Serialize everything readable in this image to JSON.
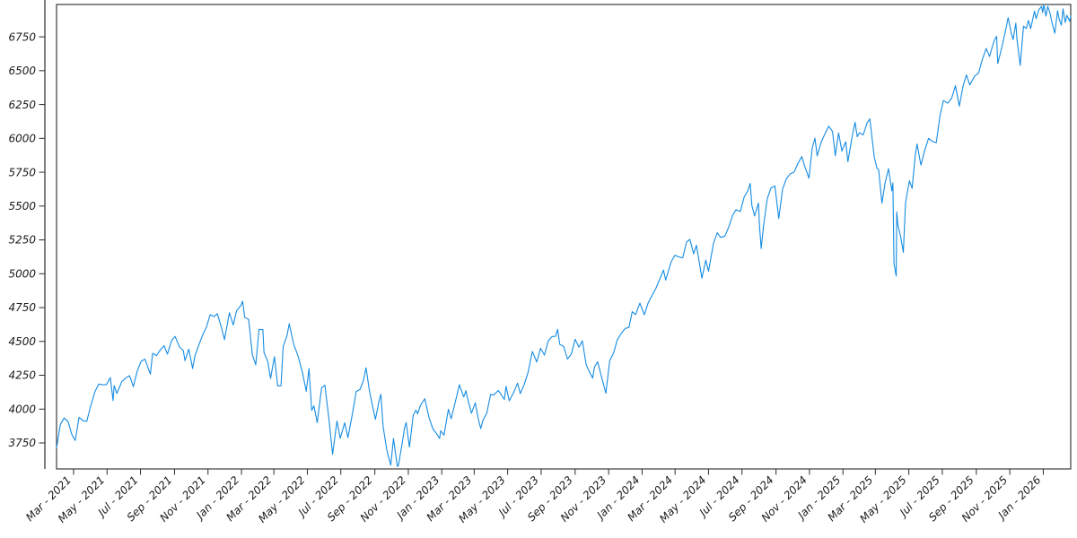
{
  "figure": {
    "background": "#ffffff",
    "border_color": "#2b2b2b",
    "tick_color": "#2b2b2b",
    "label_color": "#1a1a1a"
  },
  "chart_data": {
    "type": "line",
    "title": "",
    "xlabel": "",
    "ylabel": "",
    "grid": false,
    "legend": null,
    "line_color": "#168ce3",
    "line_width": 1.1,
    "xlim": [
      "2021-01-29",
      "2026-02-20"
    ],
    "ylim": [
      3558,
      6989
    ],
    "y_ticks": [
      3750,
      4000,
      4250,
      4500,
      4750,
      5000,
      5250,
      5500,
      5750,
      6000,
      6250,
      6500,
      6750
    ],
    "x_ticks": [
      {
        "date": "2021-03-01",
        "label": "Mar - 2021"
      },
      {
        "date": "2021-05-01",
        "label": "May - 2021"
      },
      {
        "date": "2021-07-01",
        "label": "Jul - 2021"
      },
      {
        "date": "2021-09-01",
        "label": "Sep - 2021"
      },
      {
        "date": "2021-11-01",
        "label": "Nov - 2021"
      },
      {
        "date": "2022-01-01",
        "label": "Jan - 2022"
      },
      {
        "date": "2022-03-01",
        "label": "Mar - 2022"
      },
      {
        "date": "2022-05-01",
        "label": "May - 2022"
      },
      {
        "date": "2022-07-01",
        "label": "Jul - 2022"
      },
      {
        "date": "2022-09-01",
        "label": "Sep - 2022"
      },
      {
        "date": "2022-11-01",
        "label": "Nov - 2022"
      },
      {
        "date": "2023-01-01",
        "label": "Jan - 2023"
      },
      {
        "date": "2023-03-01",
        "label": "Mar - 2023"
      },
      {
        "date": "2023-05-01",
        "label": "May - 2023"
      },
      {
        "date": "2023-07-01",
        "label": "Jul - 2023"
      },
      {
        "date": "2023-09-01",
        "label": "Sep - 2023"
      },
      {
        "date": "2023-11-01",
        "label": "Nov - 2023"
      },
      {
        "date": "2024-01-01",
        "label": "Jan - 2024"
      },
      {
        "date": "2024-03-01",
        "label": "Mar - 2024"
      },
      {
        "date": "2024-05-01",
        "label": "May - 2024"
      },
      {
        "date": "2024-07-01",
        "label": "Jul - 2024"
      },
      {
        "date": "2024-09-01",
        "label": "Sep - 2024"
      },
      {
        "date": "2024-11-01",
        "label": "Nov - 2024"
      },
      {
        "date": "2025-01-01",
        "label": "Jan - 2025"
      },
      {
        "date": "2025-03-01",
        "label": "Mar - 2025"
      },
      {
        "date": "2025-05-01",
        "label": "May - 2025"
      },
      {
        "date": "2025-07-01",
        "label": "Jul - 2025"
      },
      {
        "date": "2025-09-01",
        "label": "Sep - 2025"
      },
      {
        "date": "2025-11-01",
        "label": "Nov - 2025"
      },
      {
        "date": "2026-01-01",
        "label": "Jan - 2026"
      }
    ],
    "points": [
      [
        "2021-01-29",
        3714
      ],
      [
        "2021-02-05",
        3887
      ],
      [
        "2021-02-12",
        3935
      ],
      [
        "2021-02-19",
        3907
      ],
      [
        "2021-02-26",
        3811
      ],
      [
        "2021-03-04",
        3768
      ],
      [
        "2021-03-11",
        3939
      ],
      [
        "2021-03-18",
        3915
      ],
      [
        "2021-03-25",
        3909
      ],
      [
        "2021-04-01",
        4020
      ],
      [
        "2021-04-09",
        4129
      ],
      [
        "2021-04-16",
        4185
      ],
      [
        "2021-04-23",
        4180
      ],
      [
        "2021-04-30",
        4181
      ],
      [
        "2021-05-07",
        4233
      ],
      [
        "2021-05-12",
        4063
      ],
      [
        "2021-05-14",
        4174
      ],
      [
        "2021-05-19",
        4116
      ],
      [
        "2021-05-28",
        4204
      ],
      [
        "2021-06-04",
        4230
      ],
      [
        "2021-06-11",
        4247
      ],
      [
        "2021-06-18",
        4166
      ],
      [
        "2021-06-25",
        4281
      ],
      [
        "2021-07-02",
        4352
      ],
      [
        "2021-07-09",
        4370
      ],
      [
        "2021-07-19",
        4258
      ],
      [
        "2021-07-23",
        4412
      ],
      [
        "2021-07-30",
        4395
      ],
      [
        "2021-08-06",
        4437
      ],
      [
        "2021-08-13",
        4468
      ],
      [
        "2021-08-19",
        4406
      ],
      [
        "2021-08-27",
        4509
      ],
      [
        "2021-09-02",
        4537
      ],
      [
        "2021-09-10",
        4459
      ],
      [
        "2021-09-17",
        4433
      ],
      [
        "2021-09-20",
        4358
      ],
      [
        "2021-09-27",
        4443
      ],
      [
        "2021-10-04",
        4300
      ],
      [
        "2021-10-08",
        4391
      ],
      [
        "2021-10-15",
        4471
      ],
      [
        "2021-10-22",
        4545
      ],
      [
        "2021-10-29",
        4605
      ],
      [
        "2021-11-05",
        4698
      ],
      [
        "2021-11-12",
        4683
      ],
      [
        "2021-11-18",
        4705
      ],
      [
        "2021-11-26",
        4595
      ],
      [
        "2021-12-01",
        4513
      ],
      [
        "2021-12-10",
        4712
      ],
      [
        "2021-12-17",
        4621
      ],
      [
        "2021-12-23",
        4726
      ],
      [
        "2021-12-31",
        4766
      ],
      [
        "2022-01-03",
        4797
      ],
      [
        "2022-01-07",
        4677
      ],
      [
        "2022-01-14",
        4663
      ],
      [
        "2022-01-21",
        4398
      ],
      [
        "2022-01-27",
        4327
      ],
      [
        "2022-02-02",
        4589
      ],
      [
        "2022-02-09",
        4587
      ],
      [
        "2022-02-11",
        4419
      ],
      [
        "2022-02-18",
        4349
      ],
      [
        "2022-02-23",
        4226
      ],
      [
        "2022-03-02",
        4387
      ],
      [
        "2022-03-08",
        4171
      ],
      [
        "2022-03-14",
        4173
      ],
      [
        "2022-03-18",
        4463
      ],
      [
        "2022-03-25",
        4543
      ],
      [
        "2022-03-29",
        4631
      ],
      [
        "2022-04-06",
        4481
      ],
      [
        "2022-04-14",
        4393
      ],
      [
        "2022-04-22",
        4272
      ],
      [
        "2022-04-29",
        4132
      ],
      [
        "2022-05-04",
        4300
      ],
      [
        "2022-05-09",
        3991
      ],
      [
        "2022-05-13",
        4024
      ],
      [
        "2022-05-19",
        3900
      ],
      [
        "2022-05-27",
        4158
      ],
      [
        "2022-06-02",
        4177
      ],
      [
        "2022-06-10",
        3901
      ],
      [
        "2022-06-16",
        3667
      ],
      [
        "2022-06-24",
        3912
      ],
      [
        "2022-06-30",
        3785
      ],
      [
        "2022-07-08",
        3899
      ],
      [
        "2022-07-14",
        3790
      ],
      [
        "2022-07-22",
        3962
      ],
      [
        "2022-07-29",
        4130
      ],
      [
        "2022-08-05",
        4145
      ],
      [
        "2022-08-11",
        4210
      ],
      [
        "2022-08-16",
        4305
      ],
      [
        "2022-08-22",
        4138
      ],
      [
        "2022-08-26",
        4058
      ],
      [
        "2022-09-02",
        3924
      ],
      [
        "2022-09-09",
        4067
      ],
      [
        "2022-09-12",
        4110
      ],
      [
        "2022-09-16",
        3873
      ],
      [
        "2022-09-23",
        3693
      ],
      [
        "2022-09-30",
        3586
      ],
      [
        "2022-10-05",
        3783
      ],
      [
        "2022-10-12",
        3577
      ],
      [
        "2022-10-14",
        3583
      ],
      [
        "2022-10-21",
        3753
      ],
      [
        "2022-10-25",
        3859
      ],
      [
        "2022-10-28",
        3901
      ],
      [
        "2022-11-03",
        3720
      ],
      [
        "2022-11-10",
        3956
      ],
      [
        "2022-11-15",
        3992
      ],
      [
        "2022-11-18",
        3965
      ],
      [
        "2022-11-23",
        4027
      ],
      [
        "2022-12-01",
        4077
      ],
      [
        "2022-12-09",
        3934
      ],
      [
        "2022-12-16",
        3852
      ],
      [
        "2022-12-22",
        3822
      ],
      [
        "2022-12-28",
        3783
      ],
      [
        "2022-12-30",
        3840
      ],
      [
        "2023-01-05",
        3808
      ],
      [
        "2023-01-13",
        3999
      ],
      [
        "2023-01-18",
        3929
      ],
      [
        "2023-01-26",
        4060
      ],
      [
        "2023-02-02",
        4180
      ],
      [
        "2023-02-10",
        4090
      ],
      [
        "2023-02-14",
        4136
      ],
      [
        "2023-02-17",
        4079
      ],
      [
        "2023-02-24",
        3970
      ],
      [
        "2023-03-03",
        4046
      ],
      [
        "2023-03-09",
        3918
      ],
      [
        "2023-03-13",
        3856
      ],
      [
        "2023-03-17",
        3917
      ],
      [
        "2023-03-24",
        3971
      ],
      [
        "2023-03-31",
        4109
      ],
      [
        "2023-04-06",
        4105
      ],
      [
        "2023-04-14",
        4138
      ],
      [
        "2023-04-25",
        4072
      ],
      [
        "2023-04-28",
        4169
      ],
      [
        "2023-05-04",
        4061
      ],
      [
        "2023-05-12",
        4124
      ],
      [
        "2023-05-19",
        4192
      ],
      [
        "2023-05-24",
        4115
      ],
      [
        "2023-05-31",
        4180
      ],
      [
        "2023-06-07",
        4268
      ],
      [
        "2023-06-15",
        4426
      ],
      [
        "2023-06-23",
        4348
      ],
      [
        "2023-06-30",
        4450
      ],
      [
        "2023-07-07",
        4399
      ],
      [
        "2023-07-14",
        4505
      ],
      [
        "2023-07-21",
        4536
      ],
      [
        "2023-07-27",
        4537
      ],
      [
        "2023-07-31",
        4589
      ],
      [
        "2023-08-04",
        4478
      ],
      [
        "2023-08-11",
        4464
      ],
      [
        "2023-08-18",
        4370
      ],
      [
        "2023-08-25",
        4406
      ],
      [
        "2023-09-01",
        4516
      ],
      [
        "2023-09-08",
        4457
      ],
      [
        "2023-09-14",
        4505
      ],
      [
        "2023-09-21",
        4330
      ],
      [
        "2023-09-27",
        4275
      ],
      [
        "2023-10-03",
        4229
      ],
      [
        "2023-10-06",
        4309
      ],
      [
        "2023-10-12",
        4350
      ],
      [
        "2023-10-20",
        4224
      ],
      [
        "2023-10-27",
        4117
      ],
      [
        "2023-11-03",
        4358
      ],
      [
        "2023-11-10",
        4415
      ],
      [
        "2023-11-17",
        4514
      ],
      [
        "2023-11-24",
        4559
      ],
      [
        "2023-12-01",
        4595
      ],
      [
        "2023-12-08",
        4604
      ],
      [
        "2023-12-14",
        4720
      ],
      [
        "2023-12-20",
        4698
      ],
      [
        "2023-12-28",
        4783
      ],
      [
        "2024-01-05",
        4697
      ],
      [
        "2024-01-12",
        4784
      ],
      [
        "2024-01-19",
        4840
      ],
      [
        "2024-01-26",
        4891
      ],
      [
        "2024-02-02",
        4959
      ],
      [
        "2024-02-09",
        5027
      ],
      [
        "2024-02-13",
        4953
      ],
      [
        "2024-02-23",
        5089
      ],
      [
        "2024-03-01",
        5137
      ],
      [
        "2024-03-08",
        5124
      ],
      [
        "2024-03-15",
        5117
      ],
      [
        "2024-03-22",
        5234
      ],
      [
        "2024-03-28",
        5254
      ],
      [
        "2024-04-04",
        5147
      ],
      [
        "2024-04-09",
        5210
      ],
      [
        "2024-04-19",
        4967
      ],
      [
        "2024-04-26",
        5100
      ],
      [
        "2024-05-01",
        5018
      ],
      [
        "2024-05-10",
        5223
      ],
      [
        "2024-05-17",
        5303
      ],
      [
        "2024-05-23",
        5268
      ],
      [
        "2024-05-31",
        5278
      ],
      [
        "2024-06-07",
        5347
      ],
      [
        "2024-06-14",
        5432
      ],
      [
        "2024-06-20",
        5473
      ],
      [
        "2024-06-28",
        5460
      ],
      [
        "2024-07-05",
        5567
      ],
      [
        "2024-07-12",
        5615
      ],
      [
        "2024-07-16",
        5667
      ],
      [
        "2024-07-19",
        5505
      ],
      [
        "2024-07-24",
        5427
      ],
      [
        "2024-07-31",
        5522
      ],
      [
        "2024-08-02",
        5347
      ],
      [
        "2024-08-05",
        5186
      ],
      [
        "2024-08-09",
        5344
      ],
      [
        "2024-08-16",
        5554
      ],
      [
        "2024-08-23",
        5635
      ],
      [
        "2024-08-30",
        5648
      ],
      [
        "2024-09-06",
        5408
      ],
      [
        "2024-09-13",
        5626
      ],
      [
        "2024-09-20",
        5703
      ],
      [
        "2024-09-27",
        5738
      ],
      [
        "2024-10-04",
        5751
      ],
      [
        "2024-10-11",
        5815
      ],
      [
        "2024-10-18",
        5865
      ],
      [
        "2024-10-23",
        5797
      ],
      [
        "2024-10-31",
        5705
      ],
      [
        "2024-11-06",
        5929
      ],
      [
        "2024-11-11",
        6001
      ],
      [
        "2024-11-15",
        5871
      ],
      [
        "2024-11-22",
        5969
      ],
      [
        "2024-11-29",
        6032
      ],
      [
        "2024-12-06",
        6090
      ],
      [
        "2024-12-13",
        6051
      ],
      [
        "2024-12-18",
        5872
      ],
      [
        "2024-12-24",
        6040
      ],
      [
        "2024-12-30",
        5907
      ],
      [
        "2025-01-06",
        5975
      ],
      [
        "2025-01-10",
        5827
      ],
      [
        "2025-01-17",
        5997
      ],
      [
        "2025-01-23",
        6119
      ],
      [
        "2025-01-27",
        6012
      ],
      [
        "2025-01-31",
        6041
      ],
      [
        "2025-02-07",
        6026
      ],
      [
        "2025-02-14",
        6115
      ],
      [
        "2025-02-19",
        6144
      ],
      [
        "2025-02-27",
        5862
      ],
      [
        "2025-03-04",
        5778
      ],
      [
        "2025-03-07",
        5770
      ],
      [
        "2025-03-13",
        5521
      ],
      [
        "2025-03-19",
        5676
      ],
      [
        "2025-03-25",
        5777
      ],
      [
        "2025-03-31",
        5612
      ],
      [
        "2025-04-02",
        5671
      ],
      [
        "2025-04-04",
        5074
      ],
      [
        "2025-04-08",
        4983
      ],
      [
        "2025-04-09",
        5457
      ],
      [
        "2025-04-11",
        5363
      ],
      [
        "2025-04-16",
        5276
      ],
      [
        "2025-04-21",
        5158
      ],
      [
        "2025-04-25",
        5525
      ],
      [
        "2025-05-02",
        5687
      ],
      [
        "2025-05-07",
        5631
      ],
      [
        "2025-05-13",
        5886
      ],
      [
        "2025-05-16",
        5958
      ],
      [
        "2025-05-23",
        5803
      ],
      [
        "2025-05-30",
        5912
      ],
      [
        "2025-06-06",
        6000
      ],
      [
        "2025-06-13",
        5977
      ],
      [
        "2025-06-20",
        5968
      ],
      [
        "2025-06-27",
        6173
      ],
      [
        "2025-07-03",
        6279
      ],
      [
        "2025-07-11",
        6260
      ],
      [
        "2025-07-18",
        6297
      ],
      [
        "2025-07-25",
        6389
      ],
      [
        "2025-08-01",
        6238
      ],
      [
        "2025-08-08",
        6389
      ],
      [
        "2025-08-14",
        6469
      ],
      [
        "2025-08-20",
        6395
      ],
      [
        "2025-08-29",
        6460
      ],
      [
        "2025-09-05",
        6482
      ],
      [
        "2025-09-12",
        6584
      ],
      [
        "2025-09-19",
        6664
      ],
      [
        "2025-09-25",
        6605
      ],
      [
        "2025-10-03",
        6716
      ],
      [
        "2025-10-08",
        6754
      ],
      [
        "2025-10-10",
        6553
      ],
      [
        "2025-10-17",
        6664
      ],
      [
        "2025-10-24",
        6792
      ],
      [
        "2025-10-29",
        6891
      ],
      [
        "2025-11-04",
        6772
      ],
      [
        "2025-11-07",
        6729
      ],
      [
        "2025-11-12",
        6851
      ],
      [
        "2025-11-14",
        6734
      ],
      [
        "2025-11-20",
        6539
      ],
      [
        "2025-11-26",
        6829
      ],
      [
        "2025-12-01",
        6812
      ],
      [
        "2025-12-05",
        6871
      ],
      [
        "2025-12-09",
        6810
      ],
      [
        "2025-12-16",
        6940
      ],
      [
        "2025-12-19",
        6885
      ],
      [
        "2025-12-24",
        6950
      ],
      [
        "2025-12-29",
        6975
      ],
      [
        "2025-12-31",
        6930
      ],
      [
        "2026-01-02",
        6988
      ],
      [
        "2026-01-06",
        6903
      ],
      [
        "2026-01-09",
        6975
      ],
      [
        "2026-01-13",
        6930
      ],
      [
        "2026-01-16",
        6869
      ],
      [
        "2026-01-22",
        6777
      ],
      [
        "2026-01-27",
        6942
      ],
      [
        "2026-01-30",
        6880
      ],
      [
        "2026-02-03",
        6836
      ],
      [
        "2026-02-06",
        6956
      ],
      [
        "2026-02-10",
        6856
      ],
      [
        "2026-02-13",
        6909
      ],
      [
        "2026-02-18",
        6866
      ],
      [
        "2026-02-20",
        6903
      ]
    ]
  }
}
